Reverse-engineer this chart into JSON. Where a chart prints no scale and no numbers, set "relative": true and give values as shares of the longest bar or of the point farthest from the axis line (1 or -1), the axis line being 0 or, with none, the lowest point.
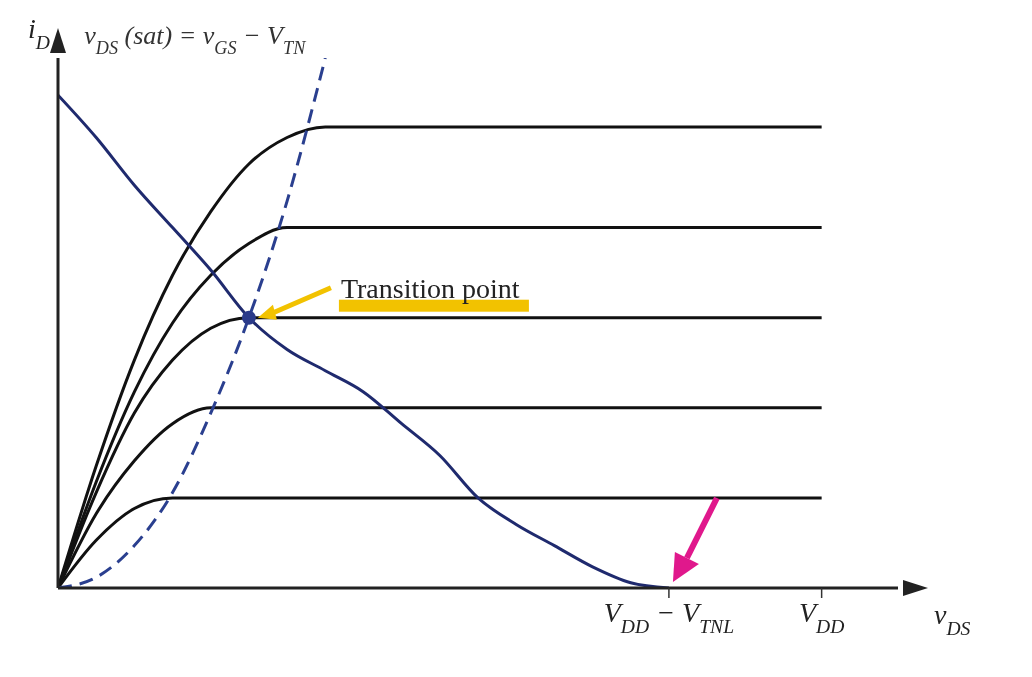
{
  "chart_data": {
    "type": "line",
    "relative": true,
    "xlabel": "v$_{DS}$",
    "ylabel": "i$_{D}$",
    "grid": false,
    "legend": false,
    "line_style": "solid",
    "categories": [
      null,
      null,
      null,
      null,
      null,
      null,
      null,
      null,
      null,
      null,
      null,
      null,
      null,
      null,
      null,
      null,
      "V$_{DD}$ − V$_{TNL}$",
      null,
      null,
      null,
      "V$_{DD}$",
      null,
      null
    ],
    "annotations": [
      {
        "text": "Transition point",
        "y": 0.51
      }
    ],
    "series": [
      {
        "color": "#111111",
        "values": [
          0,
          0.23,
          0.43,
          0.59,
          0.71,
          0.8,
          0.85,
          0.87,
          0.87,
          0.87,
          0.87,
          0.87,
          0.87,
          0.87,
          0.87,
          0.87,
          0.87,
          0.87,
          0.87,
          0.87,
          0.87,
          null,
          null
        ]
      },
      {
        "color": "#111111",
        "values": [
          0,
          0.2,
          0.37,
          0.5,
          0.59,
          0.65,
          0.68,
          0.68,
          0.68,
          0.68,
          0.68,
          0.68,
          0.68,
          0.68,
          0.68,
          0.68,
          0.68,
          0.68,
          0.68,
          0.68,
          0.68,
          null,
          null
        ]
      },
      {
        "color": "#111111",
        "values": [
          0,
          0.18,
          0.33,
          0.43,
          0.49,
          0.51,
          0.51,
          0.51,
          0.51,
          0.51,
          0.51,
          0.51,
          0.51,
          0.51,
          0.51,
          0.51,
          0.51,
          0.51,
          0.51,
          0.51,
          0.51,
          null,
          null
        ]
      },
      {
        "color": "#111111",
        "values": [
          0,
          0.14,
          0.24,
          0.31,
          0.34,
          0.34,
          0.34,
          0.34,
          0.34,
          0.34,
          0.34,
          0.34,
          0.34,
          0.34,
          0.34,
          0.34,
          0.34,
          0.34,
          0.34,
          0.34,
          0.34,
          null,
          null
        ]
      },
      {
        "color": "#111111",
        "values": [
          0,
          0.09,
          0.15,
          0.17,
          0.17,
          0.17,
          0.17,
          0.17,
          0.17,
          0.17,
          0.17,
          0.17,
          0.17,
          0.17,
          0.17,
          0.17,
          0.17,
          0.17,
          0.17,
          0.17,
          0.17,
          null,
          null
        ]
      },
      {
        "color": "#1f2a6e",
        "values": [
          0.93,
          0.85,
          0.76,
          0.68,
          0.6,
          0.51,
          0.45,
          0.41,
          0.37,
          0.31,
          0.25,
          0.17,
          0.12,
          0.08,
          0.04,
          0.01,
          0,
          null,
          null,
          null,
          null,
          null,
          null
        ]
      },
      {
        "name": "v$_{DS}$ (sat) = v$_{GS}$ − V$_{TN}$",
        "color": "#2a3f8f",
        "line_style": "dashed",
        "values": [
          0,
          0.02,
          0.08,
          0.18,
          0.33,
          0.51,
          0.73,
          1,
          null,
          null,
          null,
          null,
          null,
          null,
          null,
          null,
          null,
          null,
          null,
          null,
          null,
          null,
          null
        ]
      },
      {
        "type": "scatter",
        "color": "#2a3a8a",
        "values": [
          null,
          null,
          null,
          null,
          null,
          0.51,
          null,
          null,
          null,
          null,
          null,
          null,
          null,
          null,
          null,
          null,
          null,
          null,
          null,
          null,
          null,
          null,
          null
        ]
      }
    ]
  }
}
